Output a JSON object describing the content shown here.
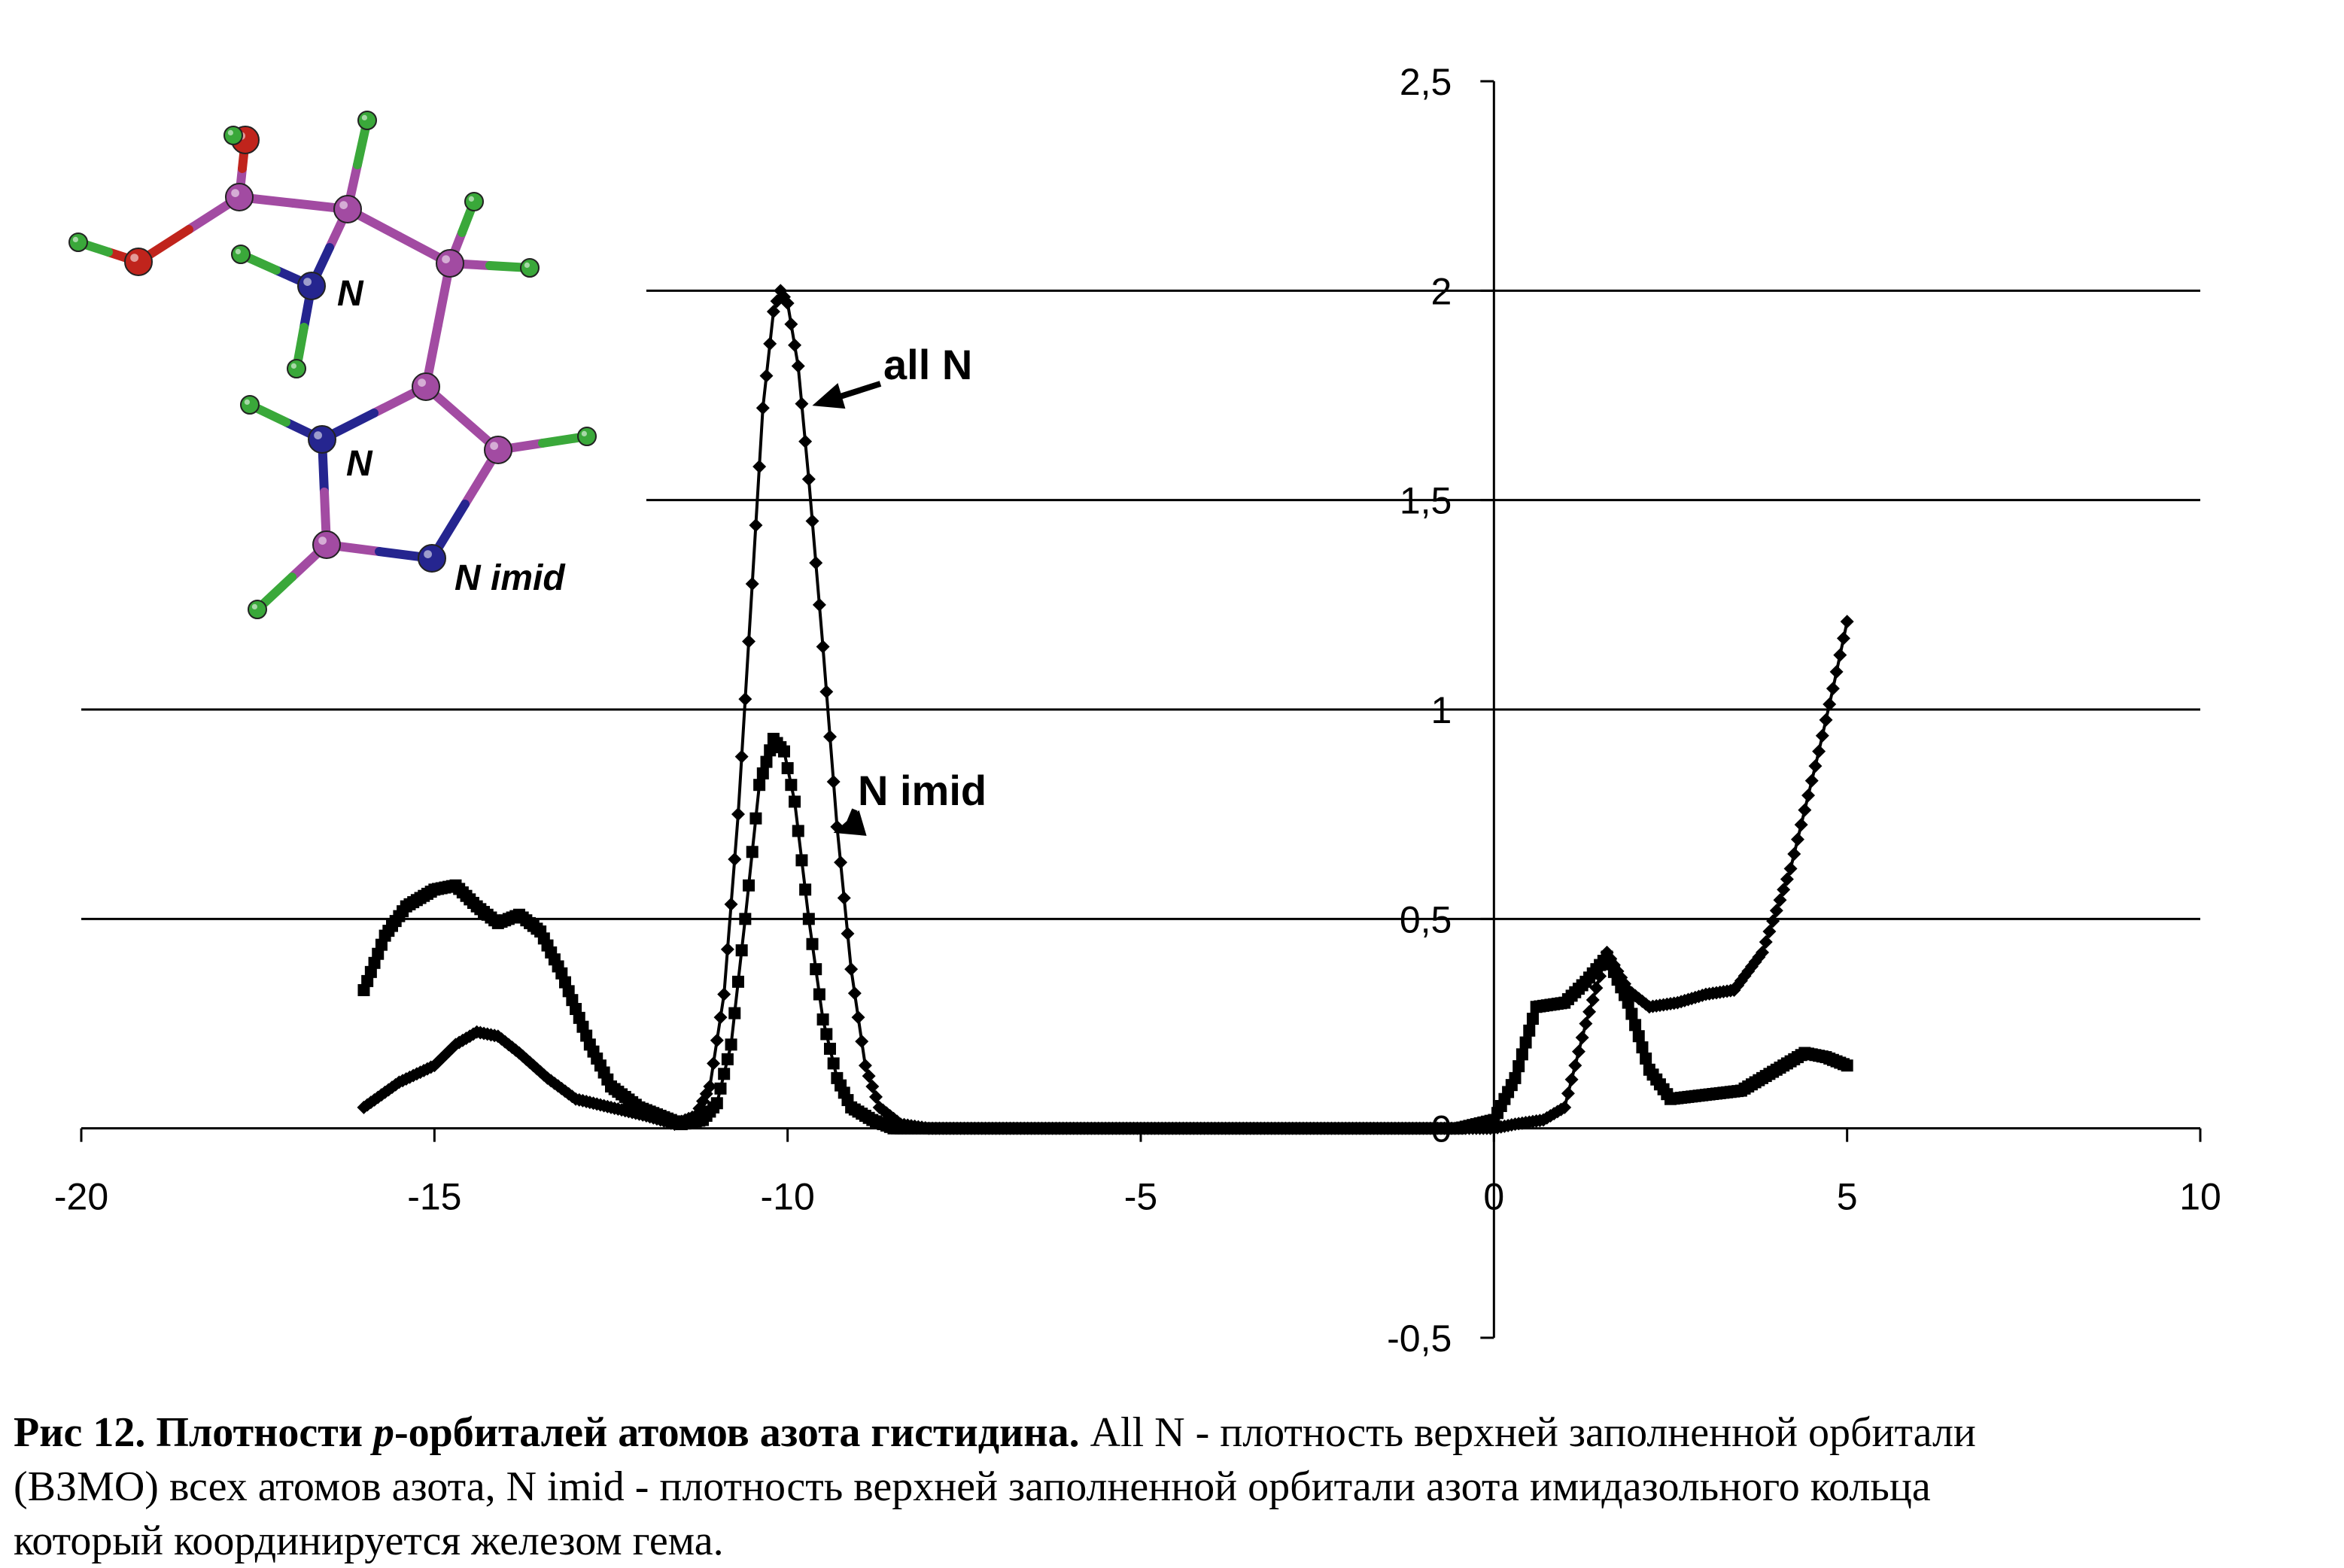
{
  "chart_data": {
    "type": "line",
    "xlim": [
      -20,
      10
    ],
    "ylim": [
      -0.5,
      2.5
    ],
    "x_ticks": [
      -20,
      -15,
      -10,
      -5,
      0,
      5,
      10
    ],
    "x_tick_labels": [
      "-20",
      "-15",
      "-10",
      "-5",
      "0",
      "5",
      "10"
    ],
    "y_ticks": [
      -0.5,
      0,
      0.5,
      1,
      1.5,
      2,
      2.5
    ],
    "y_tick_labels": [
      "-0,5",
      "0",
      "0,5",
      "1",
      "1,5",
      "2",
      "2,5"
    ],
    "gridlines_y": [
      0.5,
      1,
      1.5,
      2
    ],
    "grid": true,
    "series": [
      {
        "name": "all N",
        "marker": "diamond",
        "points": [
          [
            -16,
            0.05
          ],
          [
            -15.5,
            0.11
          ],
          [
            -15,
            0.15
          ],
          [
            -14.7,
            0.2
          ],
          [
            -14.4,
            0.23
          ],
          [
            -14.1,
            0.22
          ],
          [
            -13.8,
            0.18
          ],
          [
            -13.4,
            0.12
          ],
          [
            -13,
            0.07
          ],
          [
            -12.5,
            0.05
          ],
          [
            -12,
            0.03
          ],
          [
            -11.6,
            0.01
          ],
          [
            -11.3,
            0.03
          ],
          [
            -11.1,
            0.1
          ],
          [
            -10.9,
            0.32
          ],
          [
            -10.7,
            0.75
          ],
          [
            -10.5,
            1.3
          ],
          [
            -10.35,
            1.72
          ],
          [
            -10.2,
            1.95
          ],
          [
            -10.1,
            2.0
          ],
          [
            -10,
            1.97
          ],
          [
            -9.85,
            1.82
          ],
          [
            -9.7,
            1.55
          ],
          [
            -9.5,
            1.15
          ],
          [
            -9.3,
            0.72
          ],
          [
            -9.1,
            0.38
          ],
          [
            -8.9,
            0.15
          ],
          [
            -8.7,
            0.05
          ],
          [
            -8.4,
            0.01
          ],
          [
            -8,
            0.0
          ],
          [
            -6,
            0.0
          ],
          [
            -4,
            0.0
          ],
          [
            -2,
            0.0
          ],
          [
            -1,
            0.0
          ],
          [
            -0.3,
            0.0
          ],
          [
            0,
            0.0
          ],
          [
            0.3,
            0.01
          ],
          [
            0.7,
            0.02
          ],
          [
            1,
            0.05
          ],
          [
            1.3,
            0.25
          ],
          [
            1.6,
            0.42
          ],
          [
            1.9,
            0.33
          ],
          [
            2.2,
            0.29
          ],
          [
            2.6,
            0.3
          ],
          [
            3,
            0.32
          ],
          [
            3.4,
            0.33
          ],
          [
            3.8,
            0.42
          ],
          [
            4.2,
            0.62
          ],
          [
            4.6,
            0.9
          ],
          [
            4.8,
            1.05
          ],
          [
            5,
            1.21
          ]
        ]
      },
      {
        "name": "N imid",
        "marker": "square",
        "points": [
          [
            -16,
            0.33
          ],
          [
            -15.7,
            0.46
          ],
          [
            -15.4,
            0.53
          ],
          [
            -15,
            0.57
          ],
          [
            -14.7,
            0.58
          ],
          [
            -14.4,
            0.53
          ],
          [
            -14.1,
            0.49
          ],
          [
            -13.8,
            0.51
          ],
          [
            -13.5,
            0.47
          ],
          [
            -13.2,
            0.37
          ],
          [
            -12.8,
            0.2
          ],
          [
            -12.5,
            0.1
          ],
          [
            -12.1,
            0.05
          ],
          [
            -11.8,
            0.03
          ],
          [
            -11.5,
            0.01
          ],
          [
            -11.2,
            0.02
          ],
          [
            -11,
            0.06
          ],
          [
            -10.8,
            0.2
          ],
          [
            -10.6,
            0.5
          ],
          [
            -10.4,
            0.82
          ],
          [
            -10.2,
            0.93
          ],
          [
            -10.05,
            0.9
          ],
          [
            -9.9,
            0.78
          ],
          [
            -9.7,
            0.5
          ],
          [
            -9.5,
            0.26
          ],
          [
            -9.3,
            0.12
          ],
          [
            -9.1,
            0.05
          ],
          [
            -8.8,
            0.02
          ],
          [
            -8.5,
            0.0
          ],
          [
            -6,
            0.0
          ],
          [
            -4,
            0.0
          ],
          [
            -2,
            0.0
          ],
          [
            -0.5,
            0.0
          ],
          [
            0,
            0.02
          ],
          [
            0.3,
            0.12
          ],
          [
            0.6,
            0.29
          ],
          [
            1.0,
            0.3
          ],
          [
            1.3,
            0.35
          ],
          [
            1.6,
            0.41
          ],
          [
            1.9,
            0.3
          ],
          [
            2.2,
            0.14
          ],
          [
            2.5,
            0.07
          ],
          [
            3,
            0.08
          ],
          [
            3.5,
            0.09
          ],
          [
            4,
            0.14
          ],
          [
            4.4,
            0.18
          ],
          [
            4.7,
            0.17
          ],
          [
            5,
            0.15
          ]
        ]
      }
    ],
    "annotations": [
      {
        "text": "all N",
        "target": [
          -9.8,
          1.74
        ]
      },
      {
        "text": "N imid",
        "target": [
          -9.5,
          0.72
        ]
      }
    ]
  },
  "inset": {
    "atom_labels": [
      "N",
      "N",
      "N imid"
    ],
    "colors": {
      "carbon": "#a24ba2",
      "hydrogen": "#3aa83a",
      "oxygen": "#c0241c",
      "nitrogen": "#25258f"
    }
  },
  "caption": {
    "bold_part1": "Рис 12. Плотности ",
    "bold_italic": "p",
    "bold_part2": "-орбиталей атомов азота гистидина.",
    "text_line1": " All N - плотность верхней заполненной орбитали",
    "text_line2": "(ВЗМО) всех атомов азота, N imid - плотность верхней заполненной орбитали азота имидазольного кольца",
    "text_line3": "который координируется железом гема."
  }
}
